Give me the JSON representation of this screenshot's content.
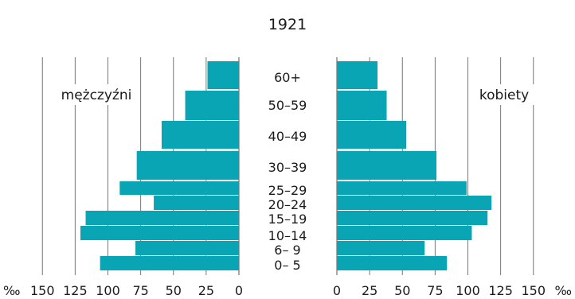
{
  "chart_data": {
    "type": "bar",
    "title": "1921",
    "unit": "‰",
    "categories": [
      "60+",
      "50–59",
      "40–49",
      "30–39",
      "25–29",
      "20–24",
      "15–19",
      "10–14",
      "6– 9",
      "0– 5"
    ],
    "series": [
      {
        "name": "mężczyźni",
        "values": [
          24,
          41,
          59,
          78,
          91,
          65,
          117,
          121,
          79,
          106
        ]
      },
      {
        "name": "kobiety",
        "values": [
          31,
          38,
          53,
          76,
          99,
          118,
          115,
          103,
          67,
          84
        ]
      }
    ],
    "x_ticks": [
      "0",
      "25",
      "50",
      "75",
      "100",
      "125",
      "150"
    ],
    "xlim": [
      0,
      150
    ],
    "bar_color": "#0aa5b5",
    "grid": true
  }
}
